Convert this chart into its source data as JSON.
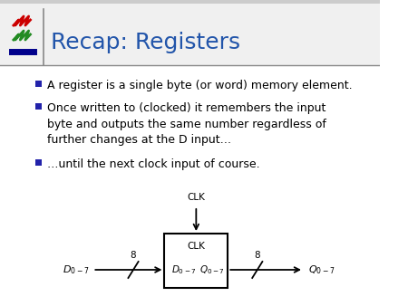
{
  "title": "Recap: Registers",
  "title_color": "#2255AA",
  "bg_color": "#FFFFFF",
  "header_bg": "#FFFFFF",
  "top_bar_color": "#AAAAAA",
  "sep_line_color": "#888888",
  "bullet_color": "#2222AA",
  "text_color": "#000000",
  "bullets": [
    "A register is a single byte (or word) memory element.",
    "Once written to (clocked) it remembers the input\nbyte and outputs the same number regardless of\nfurther changes at the D input…",
    "…until the next clock input of course."
  ],
  "logo_red": "#CC0000",
  "logo_green": "#228B22",
  "logo_blue": "#00008B",
  "title_fontsize": 18,
  "bullet_fontsize": 9,
  "diagram_fontsize": 7.5
}
